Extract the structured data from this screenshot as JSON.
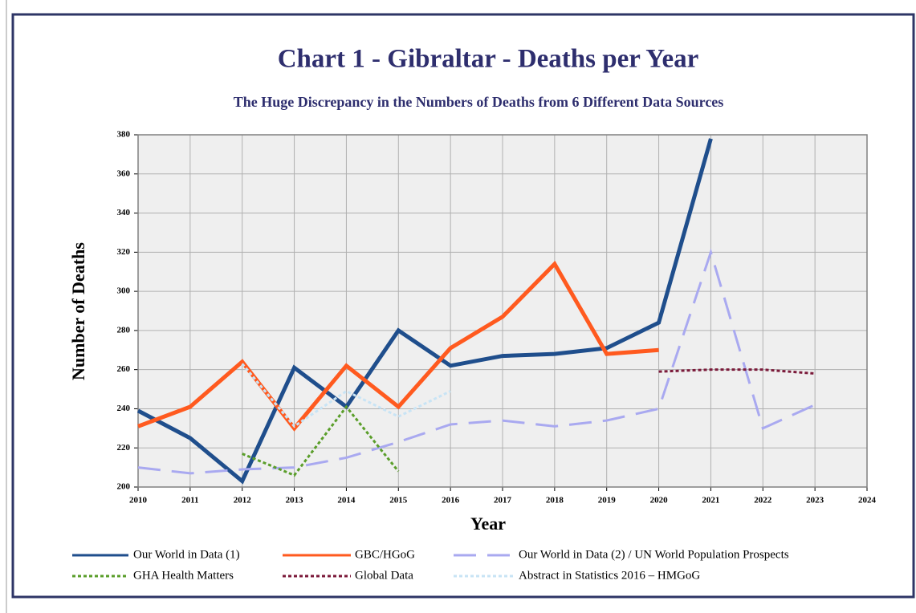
{
  "chart_data": {
    "type": "line",
    "title": "Chart 1 - Gibraltar - Deaths per Year",
    "subtitle": "The Huge Discrepancy in the Numbers of Deaths from 6 Different Data Sources",
    "x_label": "Year",
    "y_label": "Number of Deaths",
    "x": [
      2010,
      2011,
      2012,
      2013,
      2014,
      2015,
      2016,
      2017,
      2018,
      2019,
      2020,
      2021,
      2022,
      2023
    ],
    "series": [
      {
        "name": "Our World in Data (1)",
        "color": "#1f4e8c",
        "line_style": "solid",
        "values": [
          239,
          225,
          203,
          261,
          241,
          280,
          262,
          267,
          268,
          271,
          284,
          378,
          null,
          null
        ]
      },
      {
        "name": "GBC/HGoG",
        "color": "#ff5a1f",
        "line_style": "solid",
        "values": [
          231,
          241,
          264,
          230,
          262,
          241,
          271,
          287,
          314,
          268,
          270,
          null,
          null,
          null
        ]
      },
      {
        "name": "Our World in Data (2) / UN World Population Prospects",
        "color": "#a9a9f0",
        "line_style": "dashed",
        "values": [
          210,
          207,
          209,
          210,
          215,
          223,
          232,
          234,
          231,
          234,
          240,
          320,
          230,
          242
        ]
      },
      {
        "name": "GHA Health Matters",
        "color": "#5a9e2a",
        "line_style": "dotted",
        "values": [
          null,
          null,
          217,
          206,
          241,
          208,
          null,
          null,
          null,
          null,
          null,
          null,
          null,
          null
        ]
      },
      {
        "name": "Global Data",
        "color": "#7b1a3a",
        "line_style": "dotted",
        "values": [
          null,
          null,
          null,
          null,
          null,
          null,
          null,
          null,
          null,
          null,
          259,
          260,
          260,
          258
        ]
      },
      {
        "name": "Abstract in Statistics 2016 – HMGoG",
        "color": "#c8e4f5",
        "line_style": "dotted",
        "values": [
          null,
          null,
          263,
          231,
          249,
          236,
          249,
          null,
          null,
          null,
          null,
          null,
          null,
          null
        ]
      }
    ],
    "xlim": [
      2010,
      2024
    ],
    "xticks": [
      2010,
      2011,
      2012,
      2013,
      2014,
      2015,
      2016,
      2017,
      2018,
      2019,
      2020,
      2021,
      2022,
      2023,
      2024
    ],
    "ylim": [
      200,
      380
    ],
    "yticks": [
      200,
      220,
      240,
      260,
      280,
      300,
      320,
      340,
      360,
      380
    ],
    "grid": true,
    "legend": "bottom"
  }
}
